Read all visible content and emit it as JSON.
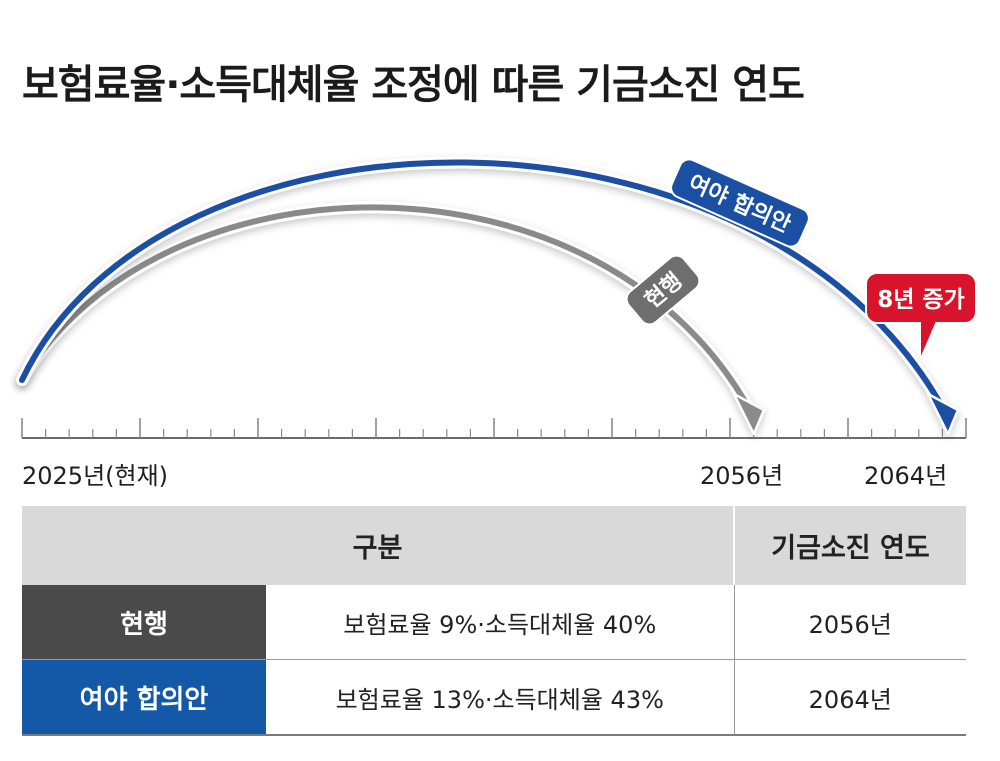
{
  "title": "보험료율·소득대체율 조정에 따른 기금소진 연도",
  "chart_data": {
    "type": "arc-timeline",
    "x_start": 2025,
    "x_end": 2064,
    "axis_labels": [
      {
        "year": 2025,
        "text": "2025년(현재)"
      },
      {
        "year": 2056,
        "text": "2056년"
      },
      {
        "year": 2064,
        "text": "2064년"
      }
    ],
    "series": [
      {
        "name": "현행",
        "start": 2025,
        "end": 2056,
        "color": "#8a8a8a"
      },
      {
        "name": "여야 합의안",
        "start": 2025,
        "end": 2064,
        "color": "#1a4fa3"
      }
    ],
    "callout": {
      "text": "8년 증가",
      "color": "#d7142b"
    }
  },
  "table": {
    "headers": {
      "category": "구분",
      "year": "기금소진 연도"
    },
    "rows": [
      {
        "name": "현행",
        "desc": "보험료율 9%·소득대체율 40%",
        "year": "2056년",
        "color": "#4a4a4a"
      },
      {
        "name": "여야 합의안",
        "desc": "보험료율 13%·소득대체율 43%",
        "year": "2064년",
        "color": "#1459a8"
      }
    ]
  }
}
